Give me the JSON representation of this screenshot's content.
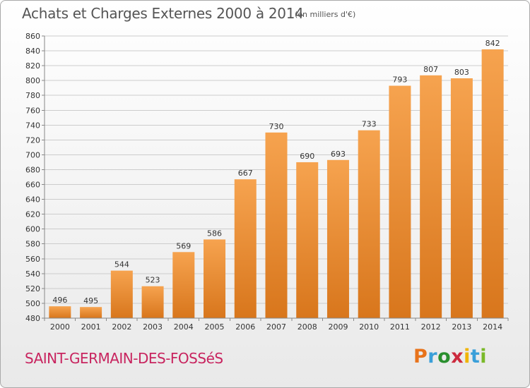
{
  "header": {
    "title": "Achats et Charges Externes 2000 à 2014",
    "unit": "(en milliers d'€)"
  },
  "location": "SAINT-GERMAIN-DES-FOSSéS",
  "brand": {
    "text": "Proxiti",
    "letter_colors": [
      "#e8731b",
      "#3a9fd9",
      "#2a8f2e",
      "#cc2a3e",
      "#f0b400",
      "#3a9fd9",
      "#7ab929"
    ]
  },
  "colors": {
    "bar_light": "#f6a34f",
    "bar_dark": "#d8761c",
    "grid": "#cccccc",
    "axis_text": "#333333"
  },
  "chart_data": {
    "type": "bar",
    "title": "Achats et Charges Externes 2000 à 2014",
    "subtitle": "(en milliers d'€)",
    "categories": [
      "2000",
      "2001",
      "2002",
      "2003",
      "2004",
      "2005",
      "2006",
      "2007",
      "2008",
      "2009",
      "2010",
      "2011",
      "2012",
      "2013",
      "2014"
    ],
    "values": [
      496,
      495,
      544,
      523,
      569,
      586,
      667,
      730,
      690,
      693,
      733,
      793,
      807,
      803,
      842
    ],
    "ylim": [
      480,
      860
    ],
    "ytick_step": 20,
    "grid": true,
    "data_labels": true
  }
}
